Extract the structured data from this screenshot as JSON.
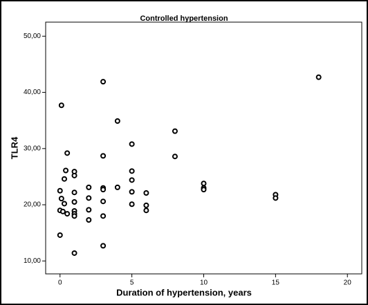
{
  "chart_data": {
    "type": "scatter",
    "title": "Controlled hypertension",
    "xlabel": "Duration of hypertension, years",
    "ylabel": "TLR4",
    "xlim": [
      -1,
      21
    ],
    "ylim": [
      7.7,
      52.5
    ],
    "xticks": [
      0,
      5,
      10,
      15,
      20
    ],
    "yticks": [
      {
        "value": 10,
        "label": "10,00"
      },
      {
        "value": 20,
        "label": "20,00"
      },
      {
        "value": 30,
        "label": "30,00"
      },
      {
        "value": 40,
        "label": "40,00"
      },
      {
        "value": 50,
        "label": "50,00"
      }
    ],
    "color": "#000000",
    "x": [
      0.1,
      0.5,
      0.4,
      0.3,
      0,
      0.1,
      0.3,
      0,
      0.2,
      0.5,
      0,
      1,
      1,
      1,
      1,
      1,
      1,
      1,
      1,
      2,
      2,
      2,
      2,
      3,
      3,
      3,
      3,
      3,
      3,
      3,
      4,
      4,
      5,
      5,
      5,
      5,
      5,
      6,
      6,
      6,
      8,
      8,
      10,
      10,
      10,
      15,
      15,
      18
    ],
    "y": [
      37.7,
      29.2,
      26.1,
      24.6,
      22.5,
      21.1,
      20.2,
      19.0,
      18.8,
      18.4,
      14.6,
      25.9,
      25.2,
      22.2,
      20.5,
      18.9,
      18.4,
      18.0,
      11.4,
      23.1,
      21.2,
      19.1,
      17.3,
      41.9,
      28.7,
      23.0,
      22.7,
      20.6,
      18.0,
      12.7,
      34.9,
      23.1,
      30.8,
      26.0,
      24.4,
      22.3,
      20.1,
      22.1,
      19.9,
      19.0,
      33.1,
      28.6,
      23.8,
      23.0,
      22.7,
      21.8,
      21.2,
      42.7
    ]
  }
}
